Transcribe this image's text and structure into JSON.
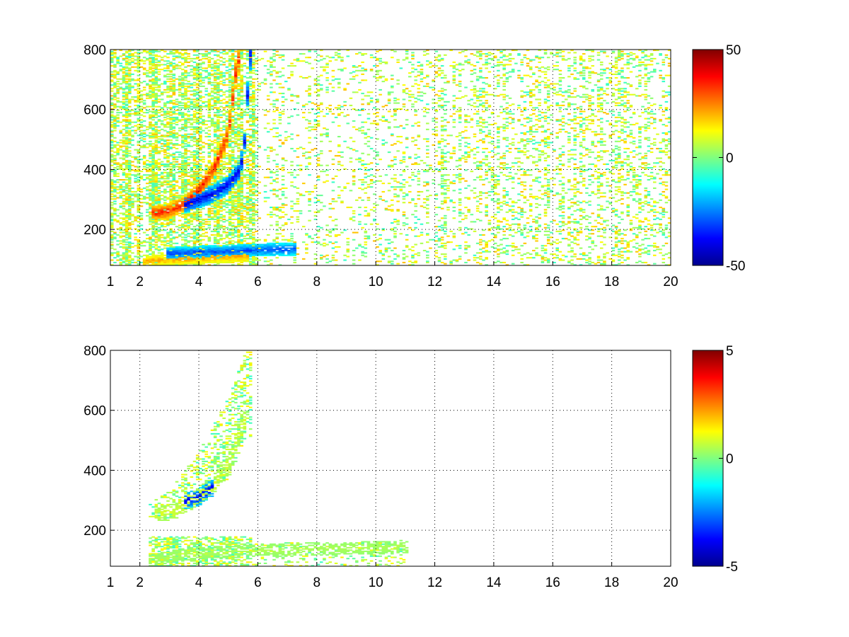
{
  "chart_data": [
    {
      "type": "heatmap",
      "colormap": "jet",
      "x_ticks": [
        "1",
        "2",
        "4",
        "6",
        "8",
        "10",
        "12",
        "14",
        "16",
        "18",
        "20"
      ],
      "x_tick_values": [
        1,
        2,
        4,
        6,
        8,
        10,
        12,
        14,
        16,
        18,
        20
      ],
      "y_ticks": [
        "200",
        "400",
        "600",
        "800"
      ],
      "y_tick_values": [
        200,
        400,
        600,
        800
      ],
      "xlim": [
        1,
        20
      ],
      "ylim": [
        80,
        800
      ],
      "grid": true,
      "colorbar": {
        "min": -50,
        "max": 50,
        "ticks": [
          "50",
          "0",
          "-50"
        ],
        "tick_values": [
          50,
          0,
          -50
        ],
        "position": "right"
      },
      "features": [
        {
          "desc": "curved ridge",
          "values_sign": "positive",
          "x": [
            2.5,
            3,
            3.5,
            4,
            4.5,
            5,
            5.3
          ],
          "y": [
            255,
            262,
            285,
            330,
            400,
            520,
            760
          ],
          "value": 40
        },
        {
          "desc": "curved ridge",
          "values_sign": "negative",
          "x": [
            3.6,
            4,
            4.5,
            5,
            5.4,
            5.6,
            5.7
          ],
          "y": [
            285,
            300,
            320,
            350,
            400,
            520,
            780
          ],
          "value": -45
        },
        {
          "desc": "low band",
          "values_sign": "positive",
          "x": [
            2.2,
            3,
            4,
            5,
            5.6
          ],
          "y": [
            95,
            100,
            105,
            110,
            112
          ],
          "value": 25
        },
        {
          "desc": "low band",
          "values_sign": "negative",
          "x": [
            3,
            4,
            5,
            6,
            7.2
          ],
          "y": [
            120,
            125,
            128,
            132,
            135
          ],
          "value": -35
        }
      ]
    },
    {
      "type": "heatmap",
      "colormap": "jet",
      "x_ticks": [
        "1",
        "2",
        "4",
        "6",
        "8",
        "10",
        "12",
        "14",
        "16",
        "18",
        "20"
      ],
      "x_tick_values": [
        1,
        2,
        4,
        6,
        8,
        10,
        12,
        14,
        16,
        18,
        20
      ],
      "y_ticks": [
        "200",
        "400",
        "600",
        "800"
      ],
      "y_tick_values": [
        200,
        400,
        600,
        800
      ],
      "xlim": [
        1,
        20
      ],
      "ylim": [
        80,
        800
      ],
      "grid": true,
      "colorbar": {
        "min": -5,
        "max": 5,
        "ticks": [
          "5",
          "0",
          "-5"
        ],
        "tick_values": [
          5,
          0,
          -5
        ],
        "position": "right"
      },
      "features": [
        {
          "desc": "sparse curved ridge",
          "values_sign": "mixed",
          "x": [
            2.6,
            3.2,
            3.8,
            4.4,
            5,
            5.5
          ],
          "y": [
            255,
            262,
            300,
            340,
            420,
            560
          ],
          "value": 1
        },
        {
          "desc": "negative patch",
          "values_sign": "negative",
          "x": [
            3.6,
            4,
            4.4
          ],
          "y": [
            300,
            310,
            340
          ],
          "value": -4.5
        },
        {
          "desc": "low band",
          "values_sign": "mixed",
          "x": [
            2.4,
            3.5,
            5,
            7,
            9,
            11
          ],
          "y": [
            100,
            120,
            130,
            135,
            140,
            145
          ],
          "value": 0.5
        }
      ]
    }
  ]
}
